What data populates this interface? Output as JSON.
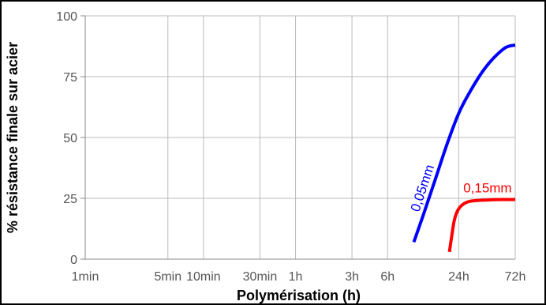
{
  "chart_data": {
    "type": "line",
    "xlabel": "Polymérisation (h)",
    "ylabel": "% résistance finale sur acier",
    "x_scale": "log",
    "x_unit": "h",
    "x_ticks": [
      {
        "label": "1min",
        "hours": 0.0166667
      },
      {
        "label": "5min",
        "hours": 0.0833333
      },
      {
        "label": "10min",
        "hours": 0.1666667
      },
      {
        "label": "30min",
        "hours": 0.5
      },
      {
        "label": "1h",
        "hours": 1
      },
      {
        "label": "3h",
        "hours": 3
      },
      {
        "label": "6h",
        "hours": 6
      },
      {
        "label": "24h",
        "hours": 24
      },
      {
        "label": "72h",
        "hours": 72
      }
    ],
    "ylim": [
      0,
      100
    ],
    "y_ticks": [
      0,
      25,
      50,
      75,
      100
    ],
    "grid": true,
    "legend": "none",
    "series": [
      {
        "name": "0,05mm",
        "color": "#0000ff",
        "points": [
          [
            10,
            7
          ],
          [
            12,
            18
          ],
          [
            15,
            32
          ],
          [
            19,
            47
          ],
          [
            24,
            60
          ],
          [
            30,
            69
          ],
          [
            38,
            77
          ],
          [
            48,
            83
          ],
          [
            60,
            87
          ],
          [
            72,
            88
          ]
        ]
      },
      {
        "name": "0,15mm",
        "color": "#ff0000",
        "points": [
          [
            20,
            3
          ],
          [
            21,
            10
          ],
          [
            22,
            16
          ],
          [
            23.5,
            20
          ],
          [
            26,
            22.5
          ],
          [
            30,
            23.8
          ],
          [
            40,
            24.3
          ],
          [
            55,
            24.5
          ],
          [
            72,
            24.5
          ]
        ]
      }
    ]
  }
}
